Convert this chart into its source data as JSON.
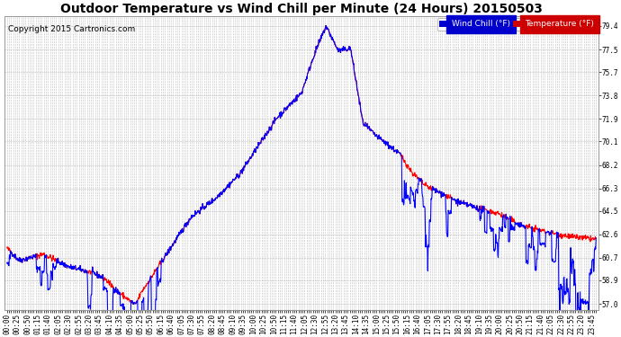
{
  "title": "Outdoor Temperature vs Wind Chill per Minute (24 Hours) 20150503",
  "copyright": "Copyright 2015 Cartronics.com",
  "ylabel_right_ticks": [
    57.0,
    58.9,
    60.7,
    62.6,
    64.5,
    66.3,
    68.2,
    70.1,
    71.9,
    73.8,
    75.7,
    77.5,
    79.4
  ],
  "ylim": [
    56.5,
    80.2
  ],
  "legend_wind_chill_label": "Wind Chill (°F)",
  "legend_temp_label": "Temperature (°F)",
  "wind_chill_color": "#0000ff",
  "temp_color": "#ff0000",
  "background_color": "#ffffff",
  "grid_color": "#bbbbbb",
  "title_fontsize": 10,
  "tick_label_fontsize": 5.5,
  "copyright_fontsize": 6.5,
  "legend_bg_wind": "#0000cc",
  "legend_bg_temp": "#cc0000"
}
